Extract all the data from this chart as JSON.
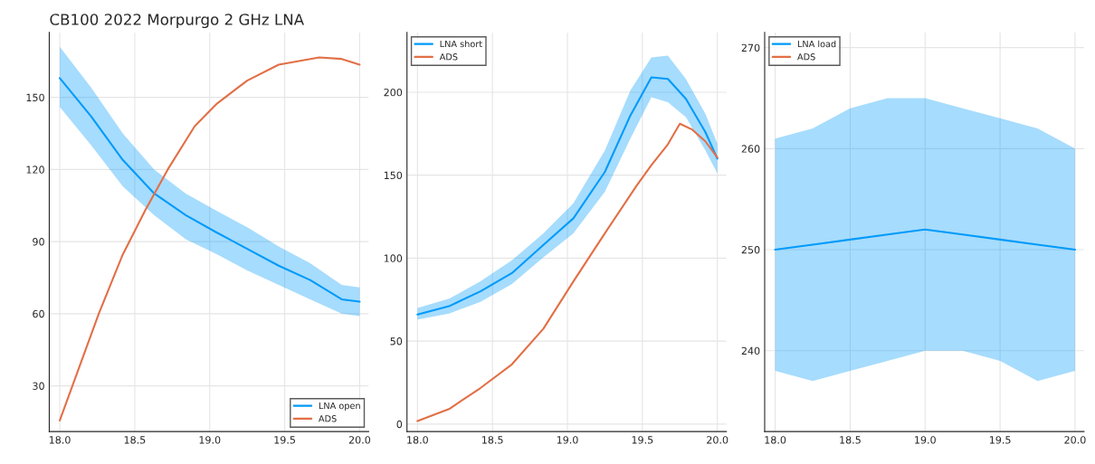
{
  "chart_data": [
    {
      "type": "line",
      "title": "CB100 2022 Morpurgo 2 GHz LNA",
      "xlim": [
        17.93,
        20.06
      ],
      "xticks": [
        {
          "value": 18.0,
          "label": "18.0"
        },
        {
          "value": 18.5,
          "label": "18.5"
        },
        {
          "value": 19.0,
          "label": "19.0"
        },
        {
          "value": 19.5,
          "label": "19.5"
        },
        {
          "value": 20.0,
          "label": "20.0"
        }
      ],
      "ylim": [
        11,
        177
      ],
      "yticks": [
        30,
        60,
        90,
        120,
        150
      ],
      "grid": true,
      "legend": "bottom right",
      "series": [
        {
          "name": "LNA open",
          "color": "#009af9",
          "x": [
            18.0,
            18.21,
            18.42,
            18.63,
            18.84,
            19.04,
            19.25,
            19.46,
            19.67,
            19.88,
            20.0
          ],
          "values": [
            158,
            142,
            124,
            110,
            101,
            94,
            87,
            80,
            74,
            66,
            65
          ],
          "lower": [
            146,
            130,
            113,
            101,
            91,
            85,
            78,
            72,
            66,
            60,
            59
          ],
          "upper": [
            171,
            154,
            135,
            120,
            110,
            103,
            96,
            88,
            81,
            72,
            71
          ]
        },
        {
          "name": "ADS",
          "color": "#e26f46",
          "x": [
            18.0,
            18.26,
            18.42,
            18.57,
            18.72,
            18.9,
            19.05,
            19.25,
            19.46,
            19.73,
            19.88,
            20.0
          ],
          "values": [
            15.6,
            60,
            84.6,
            103,
            120,
            138,
            147.5,
            157,
            163.6,
            166.6,
            166,
            163.6
          ]
        }
      ]
    },
    {
      "type": "line",
      "xlim": [
        17.93,
        20.06
      ],
      "xticks": [
        {
          "value": 18.0,
          "label": "18.0"
        },
        {
          "value": 18.5,
          "label": "18.5"
        },
        {
          "value": 19.0,
          "label": "19.0"
        },
        {
          "value": 19.5,
          "label": "19.5"
        },
        {
          "value": 20.0,
          "label": "20.0"
        }
      ],
      "ylim": [
        -4.5,
        236
      ],
      "yticks": [
        0,
        50,
        100,
        150,
        200
      ],
      "grid": true,
      "legend": "top left",
      "series": [
        {
          "name": "LNA short",
          "color": "#009af9",
          "x": [
            18.0,
            18.21,
            18.42,
            18.63,
            18.84,
            19.04,
            19.25,
            19.42,
            19.56,
            19.67,
            19.79,
            19.92,
            20.0
          ],
          "values": [
            66,
            71,
            80,
            91,
            108,
            124,
            152,
            186,
            209,
            208,
            196,
            176,
            160
          ],
          "lower": [
            63,
            66.5,
            73.7,
            84.4,
            100.5,
            115,
            140,
            172,
            197,
            194,
            185,
            165,
            151
          ],
          "upper": [
            70,
            75.5,
            86,
            98.7,
            115,
            133,
            165,
            201,
            221,
            222,
            208,
            187,
            169
          ]
        },
        {
          "name": "ADS",
          "color": "#e26f46",
          "x": [
            18.0,
            18.21,
            18.42,
            18.63,
            18.84,
            19.04,
            19.25,
            19.46,
            19.56,
            19.67,
            19.75,
            19.83,
            19.92,
            20.0
          ],
          "values": [
            1.8,
            9,
            21.7,
            36,
            57.5,
            86,
            115,
            143.5,
            156,
            168.6,
            181,
            177.6,
            170.4,
            160.6
          ]
        }
      ]
    },
    {
      "type": "line",
      "xlim": [
        17.93,
        20.06
      ],
      "xticks": [
        {
          "value": 18.0,
          "label": "18.0"
        },
        {
          "value": 18.5,
          "label": "18.5"
        },
        {
          "value": 19.0,
          "label": "19.0"
        },
        {
          "value": 19.5,
          "label": "19.5"
        },
        {
          "value": 20.0,
          "label": "20.0"
        }
      ],
      "ylim": [
        232,
        271.5
      ],
      "yticks": [
        240,
        250,
        260,
        270
      ],
      "grid": true,
      "legend": "top left",
      "series": [
        {
          "name": "LNA load",
          "color": "#009af9",
          "x": [
            18.0,
            18.25,
            18.5,
            18.75,
            19.0,
            19.25,
            19.5,
            19.75,
            20.0
          ],
          "values": [
            250,
            250.5,
            251,
            251.5,
            252,
            251.5,
            251,
            250.5,
            250
          ],
          "lower": [
            238,
            237,
            238,
            239,
            240,
            240,
            239,
            237,
            238
          ],
          "upper": [
            261,
            262,
            264,
            265,
            265,
            264,
            263,
            262,
            260
          ]
        },
        {
          "name": "ADS",
          "color": "#e26f46"
        }
      ]
    }
  ]
}
